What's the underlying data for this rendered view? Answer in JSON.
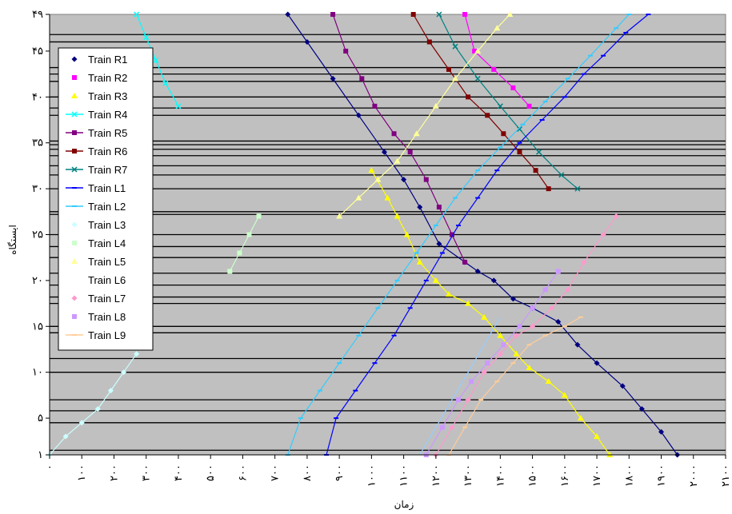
{
  "chart_data": {
    "type": "line",
    "title": "",
    "xlabel": "زمان",
    "ylabel": "ایستگاه",
    "plot_bg": "#c0c0c0",
    "ytick_labels": [
      "۱",
      "۵",
      "۱۰",
      "۱۵",
      "۲۰",
      "۲۵",
      "۳۰",
      "۳۵",
      "۴۰",
      "۴۵",
      "۴۹"
    ],
    "ytick_values": [
      1,
      5,
      10,
      15,
      20,
      25,
      30,
      35,
      40,
      45,
      49
    ],
    "xtick_labels": [
      "۰",
      "۱۰۰",
      "۲۰۰",
      "۳۰۰",
      "۴۰۰",
      "۵۰۰",
      "۶۰۰",
      "۷۰۰",
      "۸۰۰",
      "۹۰۰",
      "۱۰۰۰",
      "۱۱۰۰",
      "۱۲۰۰",
      "۱۳۰۰",
      "۱۴۰۰",
      "۱۵۰۰",
      "۱۶۰۰",
      "۱۷۰۰",
      "۱۸۰۰",
      "۱۹۰۰",
      "۲۰۰۰",
      "۲۱۰۰"
    ],
    "xtick_values": [
      0,
      100,
      200,
      300,
      400,
      500,
      600,
      700,
      800,
      900,
      1000,
      1100,
      1200,
      1300,
      1400,
      1500,
      1600,
      1700,
      1800,
      1900,
      2000,
      2100
    ],
    "xlim": [
      0,
      2100
    ],
    "ylim": [
      1,
      49
    ],
    "station_lines": [
      1.5,
      4.5,
      5.8,
      7,
      10,
      11.5,
      14.3,
      15,
      17.5,
      18.2,
      19.5,
      20.8,
      22.5,
      23.7,
      25,
      27.2,
      27.5,
      30,
      31.5,
      32.5,
      33.6,
      34.3,
      34.8,
      35.2,
      38,
      38.8,
      40,
      41.7,
      42.5,
      43.2,
      46,
      46.8
    ],
    "legend_position": "top-left",
    "series": [
      {
        "name": "Train R1",
        "color": "#000080",
        "marker": "diamond",
        "points": [
          [
            740,
            49
          ],
          [
            800,
            46
          ],
          [
            880,
            42
          ],
          [
            960,
            38
          ],
          [
            1040,
            34
          ],
          [
            1100,
            31
          ],
          [
            1150,
            28
          ],
          [
            1210,
            24
          ],
          [
            1290,
            22
          ],
          [
            1330,
            21
          ],
          [
            1380,
            20
          ],
          [
            1440,
            18
          ],
          [
            1500,
            17
          ],
          [
            1580,
            15.5
          ],
          [
            1640,
            13
          ],
          [
            1700,
            11
          ],
          [
            1780,
            8.5
          ],
          [
            1840,
            6
          ],
          [
            1900,
            3.5
          ],
          [
            1950,
            1
          ]
        ]
      },
      {
        "name": "Train R2",
        "color": "#ff00ff",
        "marker": "square",
        "points": [
          [
            1290,
            49
          ],
          [
            1320,
            45
          ],
          [
            1380,
            43
          ],
          [
            1440,
            41
          ],
          [
            1490,
            39
          ]
        ]
      },
      {
        "name": "Train R3",
        "color": "#ffff00",
        "marker": "triangle",
        "points": [
          [
            1000,
            32
          ],
          [
            1050,
            29
          ],
          [
            1080,
            27
          ],
          [
            1110,
            25
          ],
          [
            1150,
            22
          ],
          [
            1200,
            20
          ],
          [
            1240,
            18.5
          ],
          [
            1300,
            17.5
          ],
          [
            1350,
            16
          ],
          [
            1400,
            14
          ],
          [
            1450,
            12
          ],
          [
            1490,
            10.5
          ],
          [
            1550,
            9
          ],
          [
            1600,
            7.5
          ],
          [
            1650,
            5
          ],
          [
            1700,
            3
          ],
          [
            1740,
            1
          ]
        ]
      },
      {
        "name": "Train R4",
        "color": "#00ffff",
        "marker": "cross",
        "points": [
          [
            270,
            49
          ],
          [
            300,
            46.5
          ],
          [
            330,
            44
          ],
          [
            360,
            41.5
          ],
          [
            400,
            39
          ]
        ]
      },
      {
        "name": "Train R5",
        "color": "#800080",
        "marker": "square",
        "points": [
          [
            880,
            49
          ],
          [
            920,
            45
          ],
          [
            970,
            42
          ],
          [
            1010,
            39
          ],
          [
            1070,
            36
          ],
          [
            1120,
            34
          ],
          [
            1170,
            31
          ],
          [
            1210,
            28
          ],
          [
            1250,
            25
          ],
          [
            1290,
            22
          ]
        ]
      },
      {
        "name": "Train R6",
        "color": "#800000",
        "marker": "square",
        "points": [
          [
            1130,
            49
          ],
          [
            1180,
            46
          ],
          [
            1240,
            43
          ],
          [
            1300,
            40
          ],
          [
            1360,
            38
          ],
          [
            1410,
            36
          ],
          [
            1460,
            34
          ],
          [
            1510,
            32
          ],
          [
            1550,
            30
          ]
        ]
      },
      {
        "name": "Train R7",
        "color": "#008080",
        "marker": "cross",
        "points": [
          [
            1210,
            49
          ],
          [
            1260,
            45.5
          ],
          [
            1330,
            42
          ],
          [
            1400,
            39
          ],
          [
            1460,
            36.5
          ],
          [
            1520,
            34
          ],
          [
            1590,
            31.5
          ],
          [
            1640,
            30
          ]
        ]
      },
      {
        "name": "Train L1",
        "color": "#0000ff",
        "marker": "dash",
        "points": [
          [
            860,
            1
          ],
          [
            890,
            5
          ],
          [
            950,
            8
          ],
          [
            1010,
            11
          ],
          [
            1070,
            14
          ],
          [
            1120,
            17
          ],
          [
            1170,
            20
          ],
          [
            1220,
            23
          ],
          [
            1270,
            26
          ],
          [
            1330,
            29
          ],
          [
            1390,
            32
          ],
          [
            1460,
            35
          ],
          [
            1530,
            37.5
          ],
          [
            1600,
            40
          ],
          [
            1660,
            42.5
          ],
          [
            1720,
            44.5
          ],
          [
            1790,
            47
          ],
          [
            1860,
            49
          ]
        ]
      },
      {
        "name": "Train L2",
        "color": "#33ccff",
        "marker": "dash",
        "points": [
          [
            740,
            1
          ],
          [
            780,
            5
          ],
          [
            840,
            8
          ],
          [
            900,
            11
          ],
          [
            960,
            14
          ],
          [
            1020,
            17
          ],
          [
            1080,
            20
          ],
          [
            1140,
            23
          ],
          [
            1200,
            26
          ],
          [
            1260,
            29
          ],
          [
            1330,
            32
          ],
          [
            1400,
            34.5
          ],
          [
            1470,
            37
          ],
          [
            1540,
            39.5
          ],
          [
            1610,
            42
          ],
          [
            1680,
            44.5
          ],
          [
            1760,
            47.5
          ],
          [
            1800,
            49
          ]
        ]
      },
      {
        "name": "Train L3",
        "color": "#ccffff",
        "marker": "diamond",
        "points": [
          [
            0,
            1
          ],
          [
            50,
            3
          ],
          [
            100,
            4.5
          ],
          [
            150,
            6
          ],
          [
            190,
            8
          ],
          [
            230,
            10
          ],
          [
            270,
            12
          ]
        ]
      },
      {
        "name": "Train L4",
        "color": "#ccffcc",
        "marker": "square",
        "points": [
          [
            560,
            21
          ],
          [
            590,
            23
          ],
          [
            620,
            25
          ],
          [
            650,
            27
          ]
        ]
      },
      {
        "name": "Train L5",
        "color": "#ffff99",
        "marker": "triangle",
        "points": [
          [
            900,
            27
          ],
          [
            960,
            29
          ],
          [
            1020,
            31
          ],
          [
            1080,
            33
          ],
          [
            1140,
            36
          ],
          [
            1200,
            39
          ],
          [
            1260,
            42
          ],
          [
            1330,
            45
          ],
          [
            1390,
            47.5
          ],
          [
            1430,
            49
          ]
        ]
      },
      {
        "name": "Train L6",
        "color": "#99ccff",
        "marker": "none",
        "points": [
          [
            1150,
            1
          ],
          [
            1200,
            4
          ],
          [
            1250,
            7
          ],
          [
            1300,
            10
          ],
          [
            1350,
            13
          ],
          [
            1400,
            16
          ]
        ]
      },
      {
        "name": "Train L7",
        "color": "#ff99cc",
        "marker": "diamond",
        "points": [
          [
            1200,
            1
          ],
          [
            1250,
            4
          ],
          [
            1300,
            7
          ],
          [
            1350,
            10
          ],
          [
            1400,
            12
          ],
          [
            1450,
            14
          ],
          [
            1500,
            15
          ],
          [
            1560,
            17
          ],
          [
            1610,
            19
          ],
          [
            1660,
            22
          ],
          [
            1720,
            25
          ],
          [
            1760,
            27
          ]
        ]
      },
      {
        "name": "Train L8",
        "color": "#cc99ff",
        "marker": "square",
        "points": [
          [
            1170,
            1
          ],
          [
            1220,
            4
          ],
          [
            1270,
            7
          ],
          [
            1310,
            9
          ],
          [
            1360,
            11
          ],
          [
            1410,
            13
          ],
          [
            1460,
            15
          ],
          [
            1500,
            17
          ],
          [
            1540,
            19
          ],
          [
            1580,
            21
          ]
        ]
      },
      {
        "name": "Train L9",
        "color": "#ffcc99",
        "marker": "dash",
        "points": [
          [
            1240,
            1
          ],
          [
            1290,
            4
          ],
          [
            1340,
            7
          ],
          [
            1390,
            9
          ],
          [
            1440,
            11
          ],
          [
            1490,
            13
          ],
          [
            1540,
            14
          ],
          [
            1600,
            15
          ],
          [
            1650,
            16
          ]
        ]
      }
    ]
  }
}
